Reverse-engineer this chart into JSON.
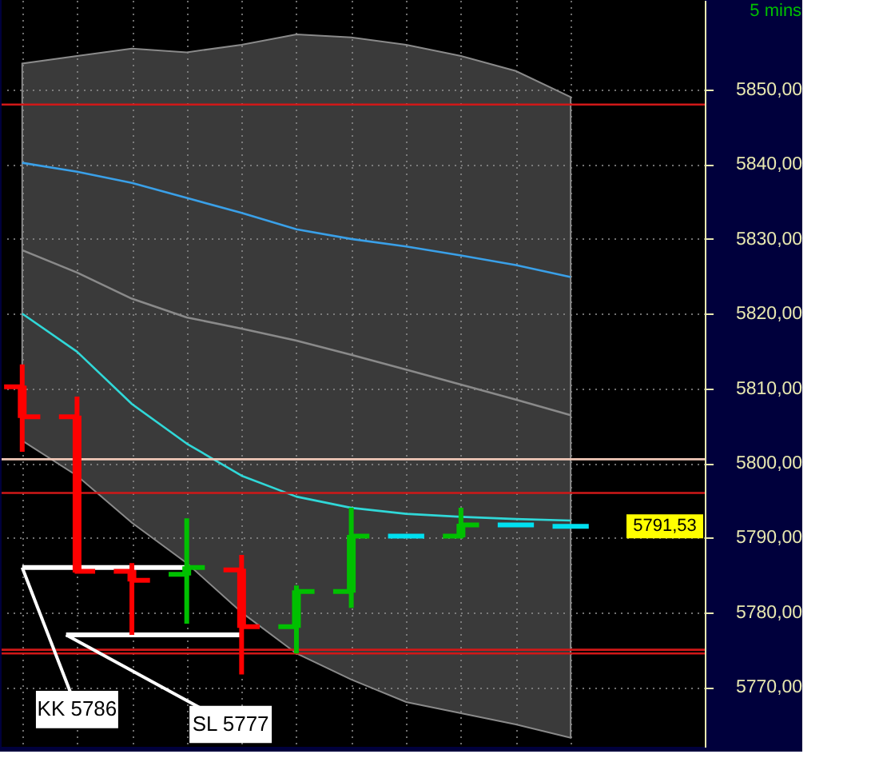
{
  "chart_data": {
    "type": "candlestick",
    "title": "5 mins",
    "categories": [
      null,
      null,
      null,
      null,
      null,
      null,
      null,
      null,
      null,
      null,
      null
    ],
    "ohlc": [
      [
        5810.2,
        5813.2,
        5801.5,
        5806.2
      ],
      [
        5806.2,
        5808.9,
        5785.5,
        5785.5
      ],
      [
        5785.5,
        5786.6,
        5777.0,
        5784.3
      ],
      [
        5785.1,
        5792.6,
        5778.5,
        5786.0
      ],
      [
        5785.7,
        5787.7,
        5771.7,
        5778.1
      ],
      [
        5778.1,
        5783.6,
        5774.5,
        5782.8
      ],
      [
        5782.8,
        5794.0,
        5780.6,
        5790.2
      ],
      [
        5790.2,
        5790.2,
        5790.2,
        5790.2
      ],
      [
        5790.2,
        5794.0,
        5790.2,
        5791.7
      ],
      [
        5791.7,
        5791.7,
        5791.7,
        5791.7
      ],
      [
        5791.53,
        5791.53,
        5791.53,
        5791.53
      ]
    ],
    "colors": [
      "#ff0000",
      "#ff0000",
      "#ff0000",
      "#00c000",
      "#ff0000",
      "#00c000",
      "#00c000",
      "#00e0f0",
      "#00c000",
      "#00e0f0",
      "#00e0f0"
    ],
    "series": [
      {
        "type": "line",
        "color": "#8a8a8a",
        "values": [
          5828.5,
          5825.5,
          5822,
          5819.5,
          5818,
          5816.4,
          5814.5,
          5812.5,
          5810.5,
          5808.5,
          5806.4
        ],
        "upper": [
          5853.5,
          5854.5,
          5855.5,
          5855,
          5856,
          5857.4,
          5857,
          5856,
          5854.5,
          5852.5,
          5849
        ],
        "lower": [
          5803,
          5798.3,
          5792,
          5786.6,
          5780,
          5774.5,
          5771,
          5768,
          5766.5,
          5765,
          5763.2
        ]
      },
      {
        "type": "line",
        "color": "#3aa0e8",
        "values": [
          5840.2,
          5839,
          5837.5,
          5835.5,
          5833.5,
          5831.3,
          5830,
          5829,
          5827.8,
          5826.5,
          5824.9
        ]
      },
      {
        "type": "line",
        "color": "#30d8d8",
        "values": [
          5820,
          5814.9,
          5807.9,
          5802.6,
          5798.3,
          5795.5,
          5794.0,
          5793.2,
          5792.8,
          5792.5,
          5792.3
        ]
      }
    ],
    "ref_lines": [
      {
        "axis": "y",
        "value": 5848,
        "color": "#d01818"
      },
      {
        "axis": "y",
        "value": 5800.5,
        "color": "#f0c8b8"
      },
      {
        "axis": "y",
        "value": 5796,
        "color": "#d01818"
      },
      {
        "axis": "y",
        "value": 5775,
        "color": "#d01818"
      },
      {
        "axis": "y",
        "value": 5774.5,
        "color": "#d01818"
      },
      {
        "axis": "y",
        "value": 5786,
        "label": "KK 5786",
        "color": "#ffffff"
      },
      {
        "axis": "y",
        "value": 5777,
        "label": "SL 5777",
        "color": "#ffffff"
      }
    ],
    "annotations": [
      "5791,53"
    ],
    "ylim": [
      5762,
      5862
    ],
    "yticks": [
      {
        "value": 5770,
        "label": "5770,00"
      },
      {
        "value": 5780,
        "label": "5780,00"
      },
      {
        "value": 5790,
        "label": "5790,00"
      },
      {
        "value": 5800,
        "label": "5800,00"
      },
      {
        "value": 5810,
        "label": "5810,00"
      },
      {
        "value": 5820,
        "label": "5820,00"
      },
      {
        "value": 5830,
        "label": "5830,00"
      },
      {
        "value": 5840,
        "label": "5840,00"
      },
      {
        "value": 5850,
        "label": "5850,00"
      }
    ],
    "grid": true,
    "tick_labels": "y"
  }
}
